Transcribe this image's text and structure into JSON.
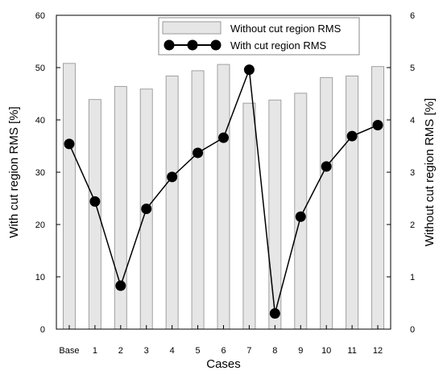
{
  "chart_data": {
    "type": "bar",
    "categories": [
      "Base",
      "1",
      "2",
      "3",
      "4",
      "5",
      "6",
      "7",
      "8",
      "9",
      "10",
      "11",
      "12"
    ],
    "series": [
      {
        "name": "Without cut region RMS",
        "type": "bar",
        "axis": "right",
        "values": [
          5.08,
          4.39,
          4.64,
          4.59,
          4.84,
          4.94,
          5.06,
          4.32,
          4.38,
          4.51,
          4.81,
          4.84,
          5.02
        ],
        "color": "#e6e6e6"
      },
      {
        "name": "With cut region RMS",
        "type": "line",
        "axis": "left",
        "values": [
          35.4,
          24.4,
          8.3,
          23.0,
          29.1,
          33.7,
          36.6,
          49.6,
          3.0,
          21.5,
          31.1,
          36.9,
          39.0
        ],
        "color": "#000000"
      }
    ],
    "xlabel": "Cases",
    "ylabel": "With cut region RMS [%]",
    "y2label": "Without cut region RMS [%]",
    "ylim": [
      0,
      60
    ],
    "y2lim": [
      0,
      6
    ],
    "yticks": [
      0,
      10,
      20,
      30,
      40,
      50,
      60
    ],
    "y2ticks": [
      0,
      1,
      2,
      3,
      4,
      5,
      6
    ],
    "grid": false,
    "legend_position": "top-right"
  }
}
